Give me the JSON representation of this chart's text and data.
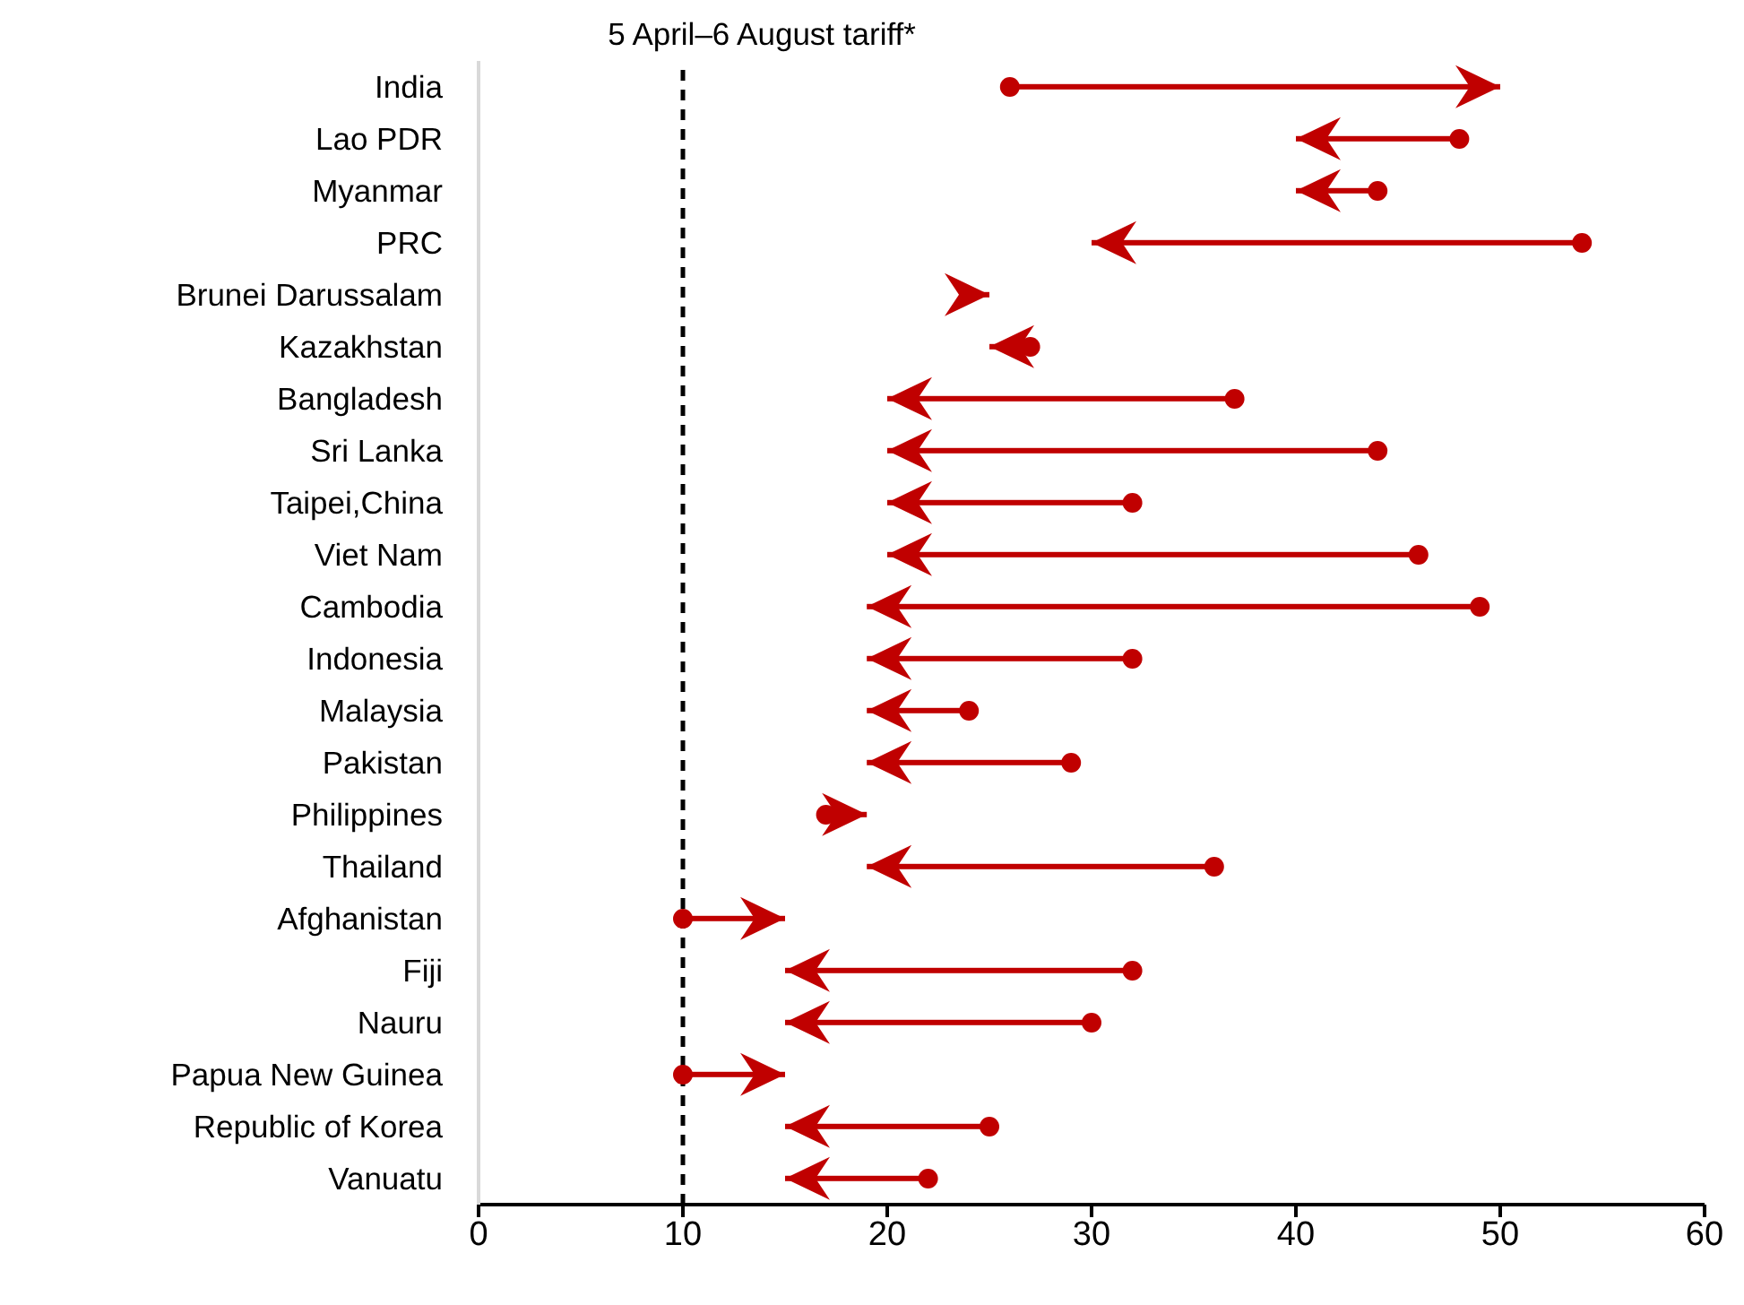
{
  "chart_data": {
    "type": "bar",
    "orientation": "horizontal",
    "categories": [
      "India",
      "Lao PDR",
      "Myanmar",
      "PRC",
      "Brunei Darussalam",
      "Kazakhstan",
      "Bangladesh",
      "Sri Lanka",
      "Taipei,China",
      "Viet Nam",
      "Cambodia",
      "Indonesia",
      "Malaysia",
      "Pakistan",
      "Philippines",
      "Thailand",
      "Afghanistan",
      "Fiji",
      "Nauru",
      "Papua New Guinea",
      "Republic of Korea",
      "Vanuatu"
    ],
    "base": [
      26,
      48,
      44,
      54,
      24,
      27,
      37,
      44,
      32,
      46,
      49,
      32,
      24,
      29,
      17,
      36,
      10,
      32,
      30,
      10,
      25,
      22
    ],
    "values": [
      24,
      -8,
      -4,
      -24,
      1,
      -2,
      -17,
      -24,
      -12,
      -26,
      -30,
      -13,
      -5,
      -10,
      2,
      -17,
      5,
      -17,
      -15,
      5,
      -10,
      -7
    ],
    "color": "#c00000",
    "series": [
      {
        "type": "scatter",
        "color": "#c00000",
        "marker": "circle",
        "values": [
          26,
          48,
          44,
          54,
          null,
          27,
          37,
          44,
          32,
          46,
          49,
          32,
          24,
          29,
          17,
          36,
          10,
          32,
          30,
          10,
          25,
          22
        ]
      }
    ],
    "xlim": [
      0,
      60
    ],
    "xticks": [
      0,
      10,
      20,
      30,
      40,
      50,
      60
    ],
    "grid": false,
    "ref_lines": [
      {
        "axis": "x",
        "value": 10,
        "label": "5 April–6 August tariff*",
        "color": "#000000",
        "line_style": "dashed"
      }
    ]
  }
}
